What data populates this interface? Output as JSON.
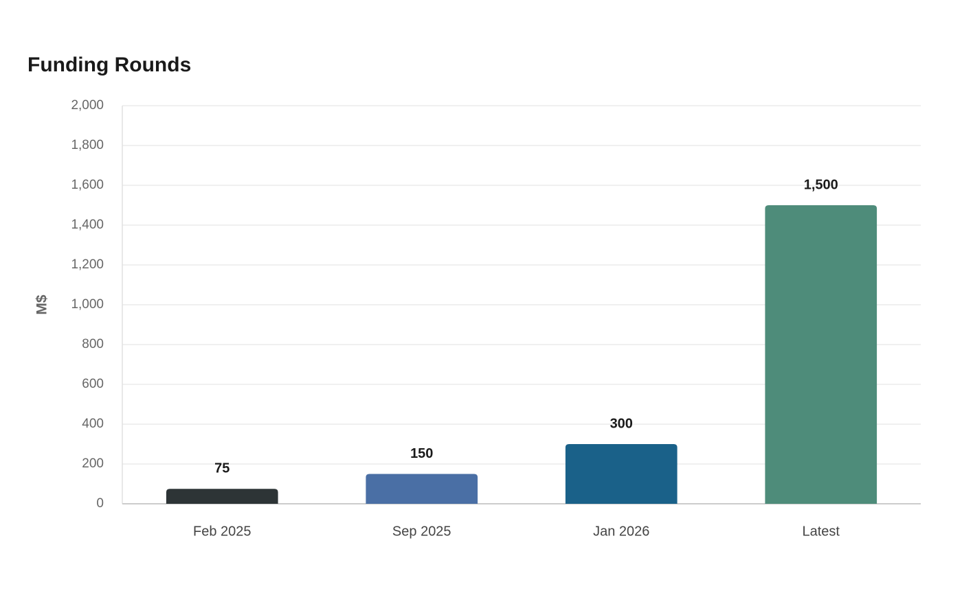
{
  "chart_data": {
    "type": "bar",
    "title": "Funding Rounds",
    "y_label": "M$",
    "categories": [
      "Feb 2025",
      "Sep 2025",
      "Jan 2026",
      "Latest"
    ],
    "values": [
      75,
      150,
      300,
      1500
    ],
    "value_labels": [
      "75",
      "150",
      "300",
      "1,500"
    ],
    "colors": [
      "#2d3436",
      "#4a6fa5",
      "#1a6189",
      "#4e8c7a"
    ],
    "ylim": [
      0,
      2000
    ],
    "yticks": [
      0,
      200,
      400,
      600,
      800,
      {
        "value": 1000,
        "label": "1,000"
      },
      {
        "value": 1200,
        "label": "1,200"
      },
      {
        "value": 1400,
        "label": "1,400"
      },
      {
        "value": 1600,
        "label": "1,600"
      },
      {
        "value": 1800,
        "label": "1,800"
      },
      {
        "value": 2000,
        "label": "2,000"
      }
    ],
    "grid": true
  }
}
